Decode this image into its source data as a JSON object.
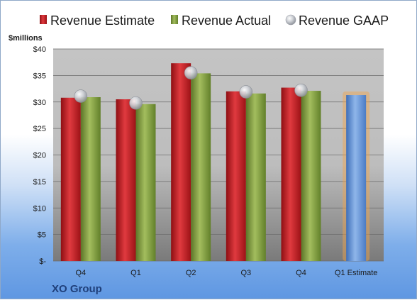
{
  "chart_data": {
    "type": "bar",
    "company": "XO Group",
    "ylabel": "$millions",
    "ylim": [
      0,
      40
    ],
    "yticks": [
      0,
      5,
      10,
      15,
      20,
      25,
      30,
      35,
      40
    ],
    "ytick_labels": [
      "$-",
      "$5",
      "$10",
      "$15",
      "$20",
      "$25",
      "$30",
      "$35",
      "$40"
    ],
    "categories": [
      "Q4",
      "Q1",
      "Q2",
      "Q3",
      "Q4",
      "Q1 Estimate"
    ],
    "series": [
      {
        "name": "Revenue Estimate",
        "type": "bar",
        "color": "#c0161c",
        "values": [
          30.8,
          30.5,
          37.3,
          32.0,
          32.7,
          null
        ]
      },
      {
        "name": "Revenue Actual",
        "type": "bar",
        "color": "#7f9c3c",
        "values": [
          30.9,
          29.6,
          35.4,
          31.6,
          32.1,
          null
        ]
      },
      {
        "name": "Revenue GAAP",
        "type": "marker",
        "color": "#b8bcc4",
        "values": [
          31.1,
          29.8,
          35.5,
          31.9,
          32.2,
          null
        ]
      },
      {
        "name": "Q1 Estimate",
        "type": "bar",
        "color": "#5b8fd6",
        "values": [
          null,
          null,
          null,
          null,
          null,
          31.3
        ]
      }
    ],
    "grid": true,
    "legend_position": "top"
  }
}
